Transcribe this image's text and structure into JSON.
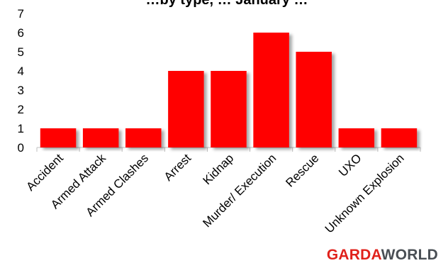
{
  "chart_data": {
    "type": "bar",
    "title": "…by type, … January …",
    "categories": [
      "Accident",
      "Armed Attack",
      "Armed Clashes",
      "Arrest",
      "Kidnap",
      "Murder/ Execution",
      "Rescue",
      "UXO",
      "Unknown Explosion"
    ],
    "series": [
      {
        "values": [
          1,
          1,
          1,
          4,
          4,
          6,
          5,
          1,
          1
        ]
      }
    ],
    "ylim": [
      0,
      7
    ],
    "yticks": [
      0,
      1,
      2,
      3,
      4,
      5,
      6,
      7
    ],
    "grid": false,
    "bar_color": "#ff0000",
    "axis_color": "#bfbfbf"
  },
  "logo": {
    "part1": "GARDA",
    "part2": "WORLD"
  }
}
